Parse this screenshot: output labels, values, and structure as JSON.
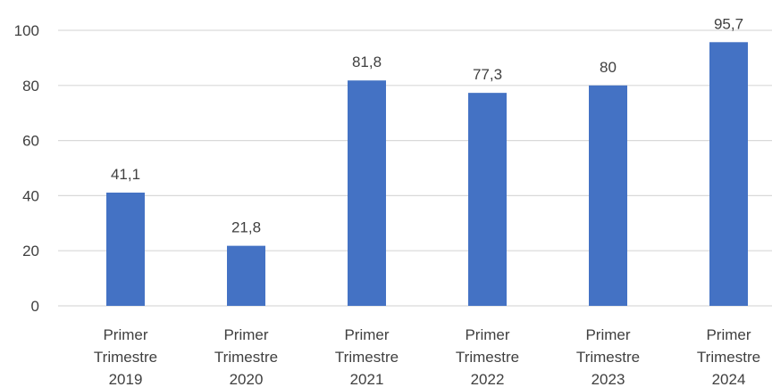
{
  "chart_data": {
    "type": "bar",
    "title": "",
    "xlabel": "",
    "ylabel": "",
    "categories": [
      [
        "Primer",
        "Trimestre",
        "2019"
      ],
      [
        "Primer",
        "Trimestre",
        "2020"
      ],
      [
        "Primer",
        "Trimestre",
        "2021"
      ],
      [
        "Primer",
        "Trimestre",
        "2022"
      ],
      [
        "Primer",
        "Trimestre",
        "2023"
      ],
      [
        "Primer",
        "Trimestre",
        "2024"
      ]
    ],
    "values": [
      41.1,
      21.8,
      81.8,
      77.3,
      80,
      95.7
    ],
    "data_labels": [
      "41,1",
      "21,8",
      "81,8",
      "77,3",
      "80",
      "95,7"
    ],
    "ylim": [
      0,
      100
    ],
    "yticks": [
      0,
      20,
      40,
      60,
      80,
      100
    ],
    "grid": true,
    "legend": "none",
    "colors": {
      "bar": "#4472c4",
      "grid": "#d9d9d9",
      "text": "#404040"
    }
  }
}
